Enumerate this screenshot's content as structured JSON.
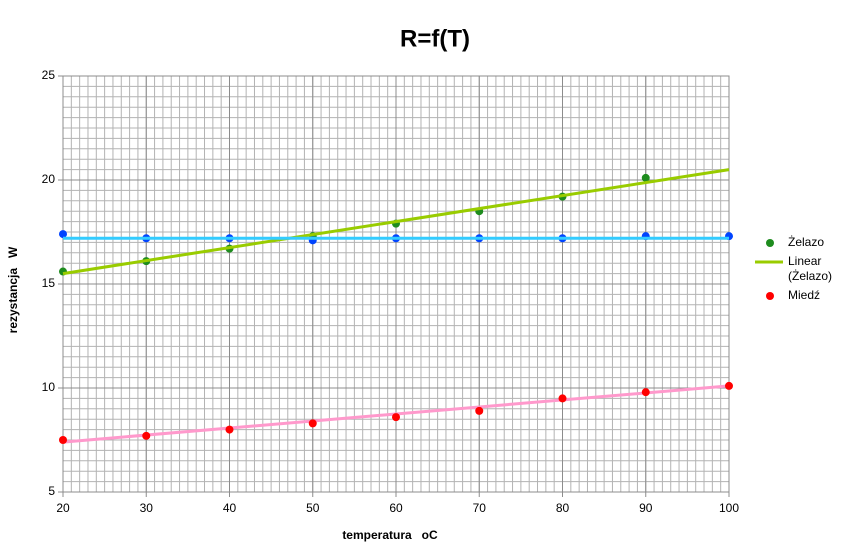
{
  "chart_data": {
    "type": "scatter",
    "title": "R=f(T)",
    "x_label": "temperatura   oC",
    "y_label": "rezystancja   W",
    "xlim": [
      20,
      100
    ],
    "xticks": [
      20,
      30,
      40,
      50,
      60,
      70,
      80,
      90,
      100
    ],
    "ylim": [
      5,
      25
    ],
    "yticks": [
      5,
      10,
      15,
      20,
      25
    ],
    "grid": true,
    "minor_grid": {
      "x": 1,
      "y": 0.5
    },
    "legend": "right",
    "series": [
      {
        "name": "Żelazo",
        "type": "scatter",
        "color": "#1e8c1e",
        "x": [
          20,
          30,
          40,
          50,
          60,
          70,
          80,
          90
        ],
        "values": [
          15.6,
          16.1,
          16.7,
          17.3,
          17.9,
          18.5,
          19.2,
          20.1
        ]
      },
      {
        "name": "Linear (Żelazo)",
        "type": "line",
        "color": "#99cc00",
        "x": [
          20,
          100
        ],
        "values": [
          15.5,
          20.5
        ]
      },
      {
        "type": "scatter",
        "color": "#0044ff",
        "x": [
          20,
          30,
          40,
          50,
          60,
          70,
          80,
          90,
          100
        ],
        "values": [
          17.4,
          17.2,
          17.2,
          17.1,
          17.2,
          17.2,
          17.2,
          17.3,
          17.3
        ]
      },
      {
        "type": "line",
        "color": "#33ccff",
        "x": [
          20,
          100
        ],
        "values": [
          17.2,
          17.2
        ]
      },
      {
        "type": "line",
        "color": "#ff99cc",
        "x": [
          20,
          100
        ],
        "values": [
          7.4,
          10.1
        ]
      },
      {
        "name": "Miedź",
        "type": "scatter",
        "color": "#ff0000",
        "x": [
          20,
          30,
          40,
          50,
          60,
          70,
          80,
          90,
          100
        ],
        "values": [
          7.5,
          7.7,
          8.0,
          8.3,
          8.6,
          8.9,
          9.5,
          9.8,
          10.1
        ]
      }
    ]
  }
}
